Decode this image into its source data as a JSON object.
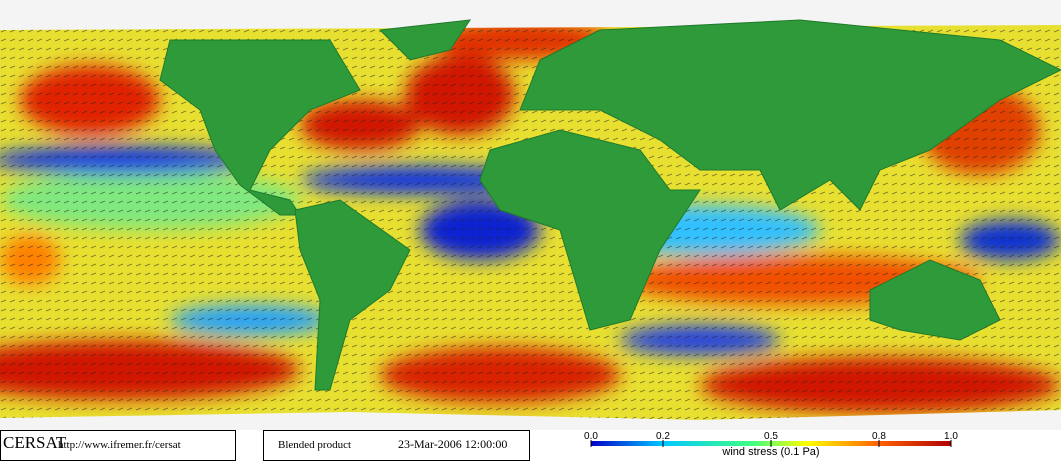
{
  "footer": {
    "brand": "CERSAT",
    "url": "http://www.ifremer.fr/cersat",
    "product": "Blended product",
    "datetime": "23-Mar-2006 12:00:00",
    "colorbar": {
      "label": "wind stress (0.1 Pa)",
      "range": [
        0,
        1
      ],
      "ticks": [
        {
          "value": 0,
          "label": "0.0"
        },
        {
          "value": 0.2,
          "label": "0.2"
        },
        {
          "value": 0.5,
          "label": "0.5"
        },
        {
          "value": 0.8,
          "label": "0.8"
        },
        {
          "value": 1,
          "label": "1.0"
        }
      ]
    }
  }
}
